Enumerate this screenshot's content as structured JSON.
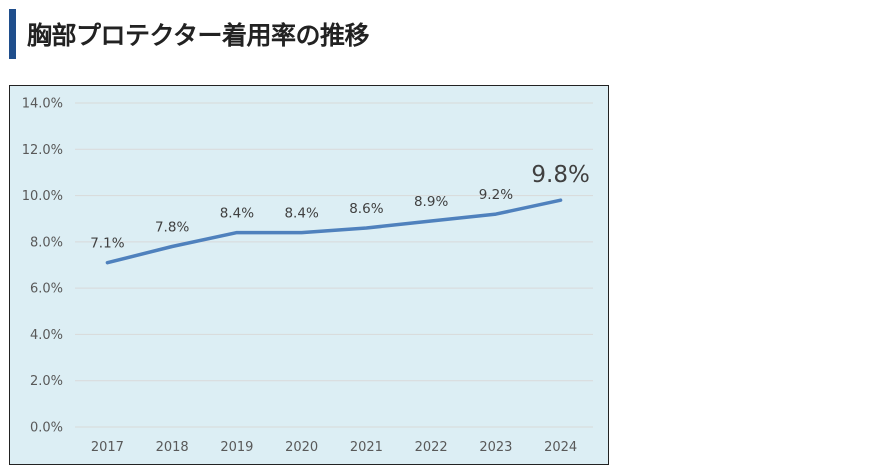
{
  "heading": {
    "title": "胸部プロテクター着用率の推移"
  },
  "colors": {
    "accent_bar": "#1f4e8c",
    "chart_background": "#dceef4",
    "line": "#4f81bd",
    "grid": "#d9d9d9"
  },
  "chart_data": {
    "type": "line",
    "categories": [
      "2017",
      "2018",
      "2019",
      "2020",
      "2021",
      "2022",
      "2023",
      "2024"
    ],
    "series": [
      {
        "values": [
          7.1,
          7.8,
          8.4,
          8.4,
          8.6,
          8.9,
          9.2,
          9.8
        ]
      }
    ],
    "data_labels": [
      "7.1%",
      "7.8%",
      "8.4%",
      "8.4%",
      "8.6%",
      "8.9%",
      "9.2%",
      "9.8%"
    ],
    "highlight_label_index": 7,
    "y_ticks": [
      0,
      2,
      4,
      6,
      8,
      10,
      12,
      14
    ],
    "y_tick_labels": [
      "0.0%",
      "2.0%",
      "4.0%",
      "6.0%",
      "8.0%",
      "10.0%",
      "12.0%",
      "14.0%"
    ],
    "ylim": [
      0,
      14
    ],
    "grid": true,
    "legend": "none",
    "title": "",
    "xlabel": "",
    "ylabel": ""
  }
}
